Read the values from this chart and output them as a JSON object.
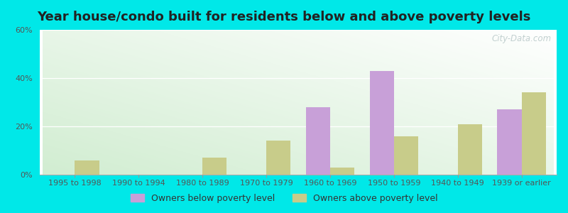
{
  "title": "Year house/condo built for residents below and above poverty levels",
  "categories": [
    "1995 to 1998",
    "1990 to 1994",
    "1980 to 1989",
    "1970 to 1979",
    "1960 to 1969",
    "1950 to 1959",
    "1940 to 1949",
    "1939 or earlier"
  ],
  "below_poverty": [
    0,
    0,
    0,
    0,
    28,
    43,
    0,
    27
  ],
  "above_poverty": [
    6,
    0,
    7,
    14,
    3,
    16,
    21,
    34
  ],
  "below_color": "#c8a0d8",
  "above_color": "#c8cc8a",
  "background_color": "#00e8e8",
  "ylim": [
    0,
    60
  ],
  "yticks": [
    0,
    20,
    40,
    60
  ],
  "bar_width": 0.38,
  "legend_below_label": "Owners below poverty level",
  "legend_above_label": "Owners above poverty level",
  "title_fontsize": 13,
  "tick_fontsize": 8,
  "legend_fontsize": 9,
  "watermark": "City-Data.com"
}
